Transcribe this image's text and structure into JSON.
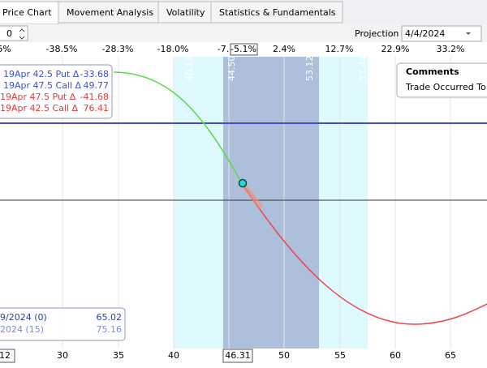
{
  "tabs": [
    "Price Chart",
    "Movement Analysis",
    "Volatility",
    "Statistics & Fundamentals"
  ],
  "toolbar": {
    "spinner_value": "0",
    "projection_label": "Projection",
    "projection_date": "4/4/2024"
  },
  "top_axis": [
    "6%",
    "-38.5%",
    "-28.3%",
    "-18.0%",
    "-7.",
    "-5.1%",
    "2.4%",
    "12.7%",
    "22.9%",
    "33.2%"
  ],
  "bottom_axis": [
    "12",
    "30",
    "35",
    "40",
    "46.31",
    "50",
    "55",
    "60",
    "65"
  ],
  "band_labels": [
    "40.18",
    "44.50",
    "53.12",
    "57.44"
  ],
  "legend": [
    {
      "label": "19Apr 42.5 Put Δ",
      "value": "-33.68"
    },
    {
      "label": "19Apr 47.5 Call Δ",
      "value": "49.77"
    },
    {
      "label": "19Apr 47.5 Put Δ",
      "value": "-41.68"
    },
    {
      "label": "19Apr 42.5 Call Δ",
      "value": "76.41"
    }
  ],
  "summary": [
    {
      "label": "9/2024 (0)",
      "value": "65.02"
    },
    {
      "label": "2024 (15)",
      "value": "75.16"
    }
  ],
  "comments": {
    "title": "Comments",
    "text": "Trade Occurred To"
  }
}
